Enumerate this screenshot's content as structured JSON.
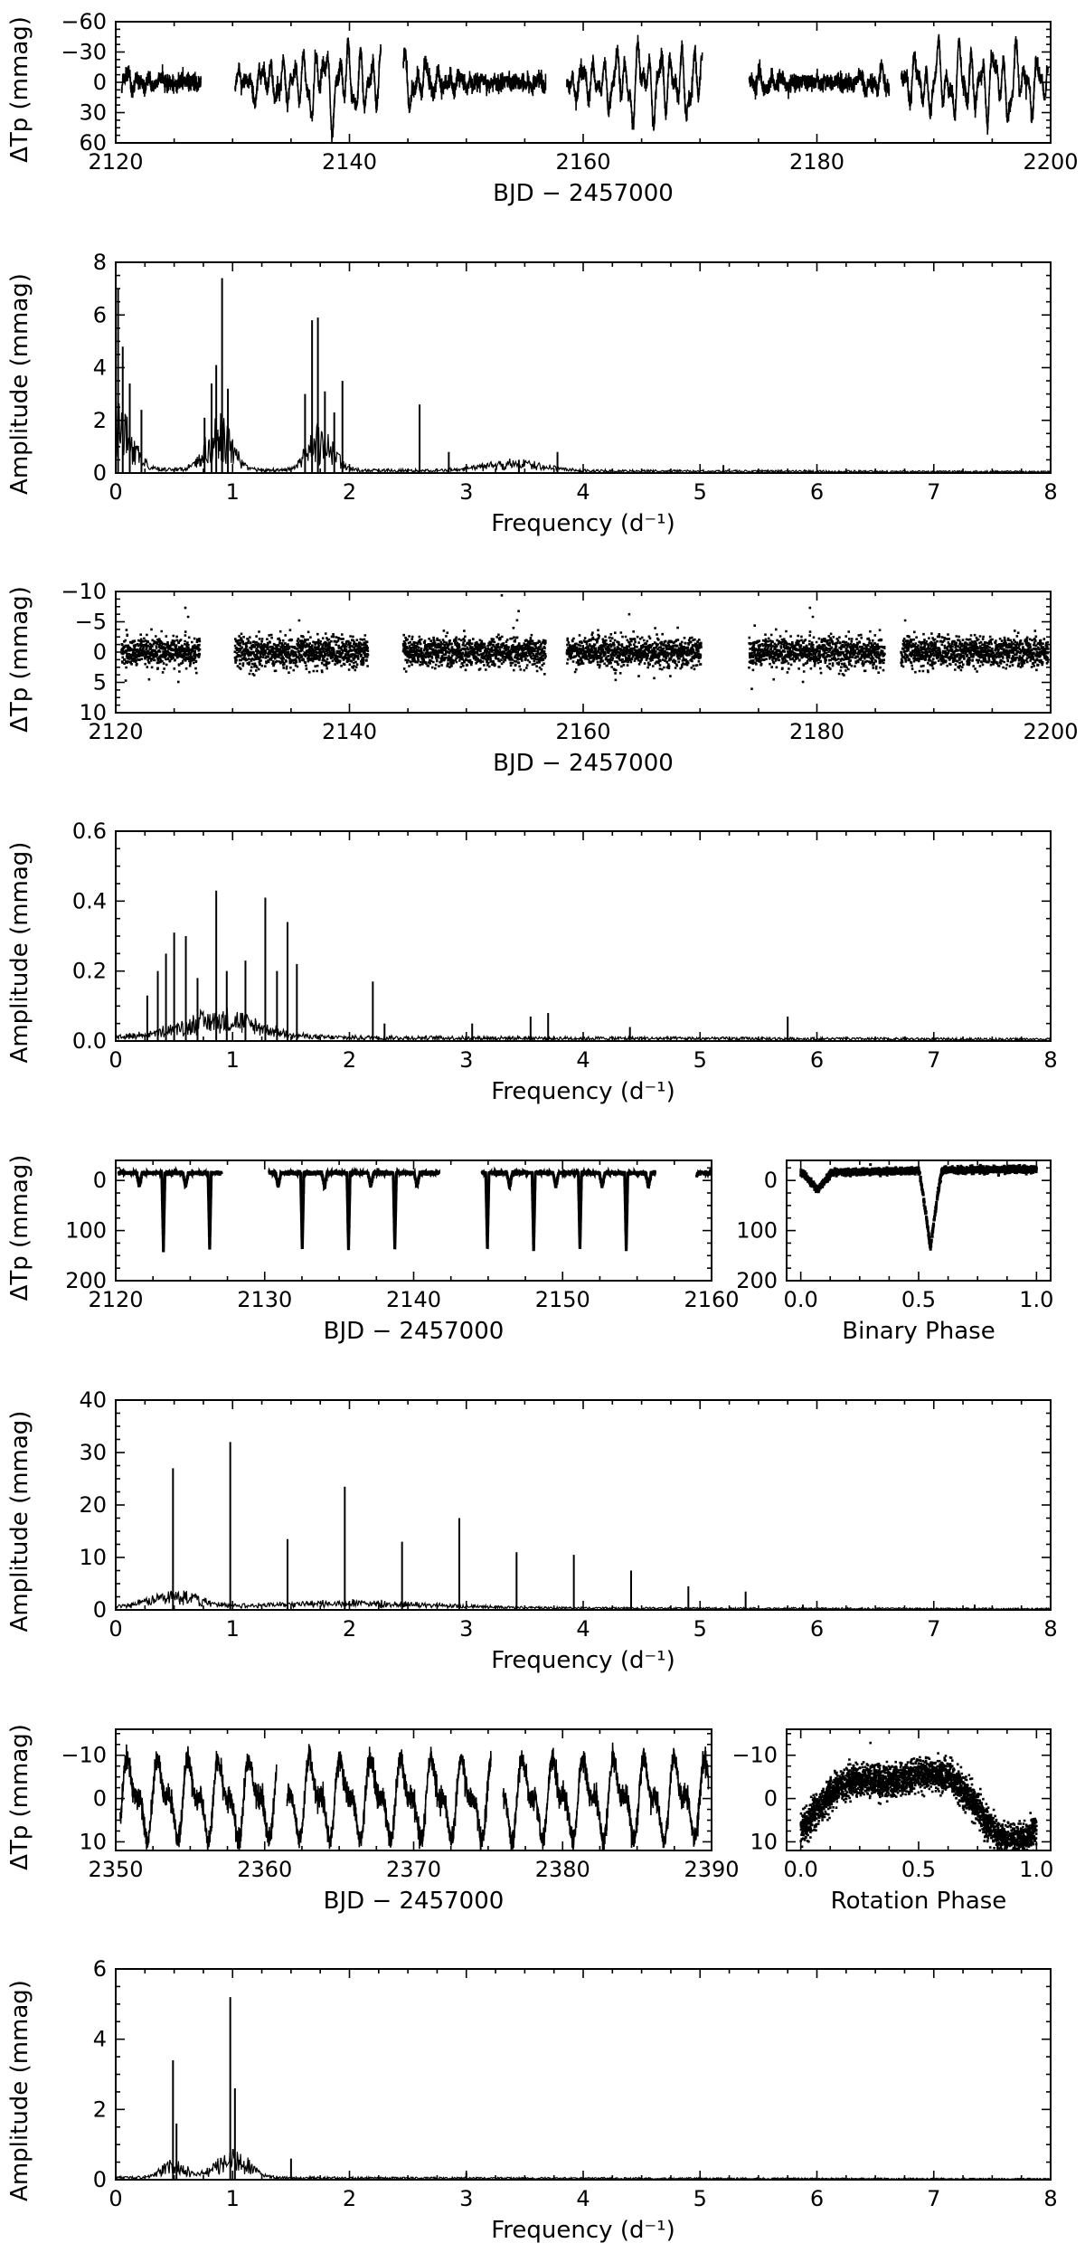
{
  "figure": {
    "panel_count": 10,
    "color_scheme": {
      "marks": "#000000",
      "background": "#ffffff"
    }
  },
  "chart_data": [
    {
      "id": "lc1",
      "type": "scatter",
      "xlabel": "BJD − 2457000",
      "ylabel": "ΔTp (mmag)",
      "xlim": [
        2120,
        2200
      ],
      "ylim": [
        60,
        -60
      ],
      "yinverted": true,
      "xticks": [
        2120,
        2140,
        2160,
        2180,
        2200
      ],
      "xtick_labels": [
        "2120",
        "2140",
        "2160",
        "2180",
        "2200"
      ],
      "yticks": [
        -60,
        -30,
        0,
        30,
        60
      ],
      "ytick_labels": [
        "−60",
        "−30",
        "0",
        "30",
        "60"
      ],
      "segments": [
        [
          2120.5,
          2127.3
        ],
        [
          2130.2,
          2142.7
        ],
        [
          2144.6,
          2156.8
        ],
        [
          2158.6,
          2170.2
        ],
        [
          2174.2,
          2186.2
        ],
        [
          2187.2,
          2199.8
        ]
      ],
      "series": [
        {
          "style": "dense-line",
          "components": [
            {
              "period": 0.95,
              "amplitude": 11
            },
            {
              "period": 0.55,
              "amplitude": 7
            },
            {
              "period": 2.3,
              "amplitude": 5
            },
            {
              "period": 1.7,
              "amplitude": 6
            }
          ],
          "envelope_peak_amplitude": 40,
          "noise": 4
        }
      ],
      "grid": false
    },
    {
      "id": "ft1",
      "type": "line",
      "xlabel": "Frequency (d⁻¹)",
      "ylabel": "Amplitude (mmag)",
      "xlim": [
        0,
        8
      ],
      "ylim": [
        0,
        8
      ],
      "xticks": [
        0,
        1,
        2,
        3,
        4,
        5,
        6,
        7,
        8
      ],
      "xtick_labels": [
        "0",
        "1",
        "2",
        "3",
        "4",
        "5",
        "6",
        "7",
        "8"
      ],
      "yticks": [
        0,
        2,
        4,
        6,
        8
      ],
      "ytick_labels": [
        "0",
        "2",
        "4",
        "6",
        "8"
      ],
      "peaks": [
        {
          "frequency": 0.02,
          "amplitude": 7.0
        },
        {
          "frequency": 0.06,
          "amplitude": 4.8
        },
        {
          "frequency": 0.12,
          "amplitude": 3.4
        },
        {
          "frequency": 0.22,
          "amplitude": 2.4
        },
        {
          "frequency": 0.76,
          "amplitude": 2.1
        },
        {
          "frequency": 0.82,
          "amplitude": 3.4
        },
        {
          "frequency": 0.86,
          "amplitude": 4.1
        },
        {
          "frequency": 0.91,
          "amplitude": 7.4
        },
        {
          "frequency": 0.96,
          "amplitude": 3.2
        },
        {
          "frequency": 1.62,
          "amplitude": 3.0
        },
        {
          "frequency": 1.68,
          "amplitude": 5.8
        },
        {
          "frequency": 1.73,
          "amplitude": 5.9
        },
        {
          "frequency": 1.79,
          "amplitude": 3.1
        },
        {
          "frequency": 1.87,
          "amplitude": 2.3
        },
        {
          "frequency": 1.94,
          "amplitude": 3.5
        },
        {
          "frequency": 2.6,
          "amplitude": 2.6
        },
        {
          "frequency": 2.85,
          "amplitude": 0.8
        },
        {
          "frequency": 3.45,
          "amplitude": 0.5
        },
        {
          "frequency": 3.78,
          "amplitude": 0.8
        },
        {
          "frequency": 5.2,
          "amplitude": 0.3
        }
      ],
      "humps": [
        {
          "center": 0.0,
          "width": 0.18,
          "height": 2.0
        },
        {
          "center": 0.88,
          "width": 0.16,
          "height": 1.6
        },
        {
          "center": 1.75,
          "width": 0.16,
          "height": 1.3
        },
        {
          "center": 3.4,
          "width": 0.4,
          "height": 0.3
        }
      ],
      "noise_floor": 0.12,
      "grid": false
    },
    {
      "id": "lc2",
      "type": "scatter",
      "xlabel": "BJD − 2457000",
      "ylabel": "ΔTp (mmag)",
      "xlim": [
        2120,
        2200
      ],
      "ylim": [
        10,
        -10
      ],
      "yinverted": true,
      "xticks": [
        2120,
        2140,
        2160,
        2180,
        2200
      ],
      "xtick_labels": [
        "2120",
        "2140",
        "2160",
        "2180",
        "2200"
      ],
      "yticks": [
        -10,
        -5,
        0,
        5,
        10
      ],
      "ytick_labels": [
        "−10",
        "−5",
        "0",
        "5",
        "10"
      ],
      "segments": [
        [
          2120.5,
          2127.2
        ],
        [
          2130.2,
          2141.6
        ],
        [
          2144.6,
          2156.8
        ],
        [
          2158.6,
          2170.1
        ],
        [
          2174.2,
          2185.8
        ],
        [
          2187.2,
          2199.8
        ]
      ],
      "series": [
        {
          "style": "points",
          "components": [],
          "noise": 1.2
        }
      ],
      "grid": false
    },
    {
      "id": "ft2",
      "type": "line",
      "xlabel": "Frequency (d⁻¹)",
      "ylabel": "Amplitude (mmag)",
      "xlim": [
        0,
        8
      ],
      "ylim": [
        0,
        0.6
      ],
      "xticks": [
        0,
        1,
        2,
        3,
        4,
        5,
        6,
        7,
        8
      ],
      "xtick_labels": [
        "0",
        "1",
        "2",
        "3",
        "4",
        "5",
        "6",
        "7",
        "8"
      ],
      "yticks": [
        0,
        0.2,
        0.4,
        0.6
      ],
      "ytick_labels": [
        "0.0",
        "0.2",
        "0.4",
        "0.6"
      ],
      "peaks": [
        {
          "frequency": 0.27,
          "amplitude": 0.13
        },
        {
          "frequency": 0.36,
          "amplitude": 0.2
        },
        {
          "frequency": 0.43,
          "amplitude": 0.25
        },
        {
          "frequency": 0.5,
          "amplitude": 0.31
        },
        {
          "frequency": 0.6,
          "amplitude": 0.3
        },
        {
          "frequency": 0.7,
          "amplitude": 0.18
        },
        {
          "frequency": 0.86,
          "amplitude": 0.43
        },
        {
          "frequency": 0.95,
          "amplitude": 0.2
        },
        {
          "frequency": 1.11,
          "amplitude": 0.23
        },
        {
          "frequency": 1.28,
          "amplitude": 0.41
        },
        {
          "frequency": 1.38,
          "amplitude": 0.2
        },
        {
          "frequency": 1.47,
          "amplitude": 0.34
        },
        {
          "frequency": 1.55,
          "amplitude": 0.22
        },
        {
          "frequency": 2.2,
          "amplitude": 0.17
        },
        {
          "frequency": 2.3,
          "amplitude": 0.05
        },
        {
          "frequency": 3.05,
          "amplitude": 0.05
        },
        {
          "frequency": 3.55,
          "amplitude": 0.07
        },
        {
          "frequency": 3.7,
          "amplitude": 0.08
        },
        {
          "frequency": 4.4,
          "amplitude": 0.04
        },
        {
          "frequency": 5.75,
          "amplitude": 0.07
        }
      ],
      "humps": [
        {
          "center": 0.9,
          "width": 0.45,
          "height": 0.06
        }
      ],
      "noise_floor": 0.012,
      "grid": false
    },
    {
      "id": "lc3",
      "type": "scatter",
      "xlabel": "BJD − 2457000",
      "ylabel": "ΔTp (mmag)",
      "xlim": [
        2120,
        2160
      ],
      "ylim": [
        200,
        -40
      ],
      "yinverted": true,
      "xticks": [
        2120,
        2130,
        2140,
        2150,
        2160
      ],
      "xtick_labels": [
        "2120",
        "2130",
        "2140",
        "2150",
        "2160"
      ],
      "yticks": [
        0,
        100,
        200
      ],
      "ytick_labels": [
        "0",
        "100",
        "200"
      ],
      "segments": [
        [
          2120.2,
          2127.1
        ],
        [
          2130.3,
          2141.7
        ],
        [
          2144.6,
          2156.2
        ],
        [
          2159.0,
          2160.0
        ]
      ],
      "series": [
        {
          "style": "eclipsing",
          "period": 3.107,
          "primary_depth": 155,
          "primary_epoch": 2123.2,
          "secondary_depth": 35,
          "baseline": -15,
          "noise": 2
        }
      ],
      "grid": false
    },
    {
      "id": "ph1",
      "type": "scatter",
      "xlabel": "Binary Phase",
      "ylabel": "",
      "xlim": [
        -0.06,
        1.06
      ],
      "ylim": [
        200,
        -40
      ],
      "yinverted": true,
      "xticks": [
        0,
        0.5,
        1.0
      ],
      "xtick_labels": [
        "0.0",
        "0.5",
        "1.0"
      ],
      "yticks": [
        0,
        100,
        200
      ],
      "ytick_labels": [
        "0",
        "100",
        "200"
      ],
      "series": [
        {
          "style": "phase-eclipse",
          "primary_phase": 0.55,
          "primary_depth": 155,
          "secondary_phase": 0.07,
          "secondary_depth": 35,
          "baseline": -15,
          "noise": 3
        }
      ],
      "grid": false
    },
    {
      "id": "ft3",
      "type": "line",
      "xlabel": "Frequency (d⁻¹)",
      "ylabel": "Amplitude (mmag)",
      "xlim": [
        0,
        8
      ],
      "ylim": [
        0,
        40
      ],
      "xticks": [
        0,
        1,
        2,
        3,
        4,
        5,
        6,
        7,
        8
      ],
      "xtick_labels": [
        "0",
        "1",
        "2",
        "3",
        "4",
        "5",
        "6",
        "7",
        "8"
      ],
      "yticks": [
        0,
        10,
        20,
        30,
        40
      ],
      "ytick_labels": [
        "0",
        "10",
        "20",
        "30",
        "40"
      ],
      "peaks": [
        {
          "frequency": 0.49,
          "amplitude": 27
        },
        {
          "frequency": 0.98,
          "amplitude": 32
        },
        {
          "frequency": 1.47,
          "amplitude": 13.5
        },
        {
          "frequency": 1.96,
          "amplitude": 23.5
        },
        {
          "frequency": 2.45,
          "amplitude": 13
        },
        {
          "frequency": 2.94,
          "amplitude": 17.5
        },
        {
          "frequency": 3.43,
          "amplitude": 11
        },
        {
          "frequency": 3.92,
          "amplitude": 10.5
        },
        {
          "frequency": 4.41,
          "amplitude": 7.5
        },
        {
          "frequency": 4.9,
          "amplitude": 4.5
        },
        {
          "frequency": 5.39,
          "amplitude": 3.5
        },
        {
          "frequency": 5.88,
          "amplitude": 1.0
        },
        {
          "frequency": 7.35,
          "amplitude": 1.0
        }
      ],
      "humps": [
        {
          "center": 0.5,
          "width": 0.3,
          "height": 2.5
        },
        {
          "center": 2.0,
          "width": 1.0,
          "height": 1.0
        }
      ],
      "noise_floor": 0.5,
      "grid": false
    },
    {
      "id": "lc4",
      "type": "scatter",
      "xlabel": "BJD − 2457000",
      "ylabel": "ΔTp (mmag)",
      "xlim": [
        2350,
        2390
      ],
      "ylim": [
        12,
        -16
      ],
      "yinverted": true,
      "xticks": [
        2350,
        2360,
        2370,
        2380,
        2390
      ],
      "xtick_labels": [
        "2350",
        "2360",
        "2370",
        "2380",
        "2390"
      ],
      "yticks": [
        -10,
        0,
        10
      ],
      "ytick_labels": [
        "−10",
        "0",
        "10"
      ],
      "segments": [
        [
          2350.3,
          2360.8
        ],
        [
          2361.5,
          2375.2
        ],
        [
          2376.0,
          2389.8
        ]
      ],
      "series": [
        {
          "style": "dense-line",
          "components": [
            {
              "period": 2.04,
              "amplitude": 7
            },
            {
              "period": 1.02,
              "amplitude": 4
            }
          ],
          "noise": 1.3
        }
      ],
      "grid": false
    },
    {
      "id": "ph2",
      "type": "scatter",
      "xlabel": "Rotation Phase",
      "ylabel": "",
      "xlim": [
        -0.06,
        1.06
      ],
      "ylim": [
        12,
        -16
      ],
      "yinverted": true,
      "xticks": [
        0,
        0.5,
        1.0
      ],
      "xtick_labels": [
        "0.0",
        "0.5",
        "1.0"
      ],
      "yticks": [
        -10,
        0,
        10
      ],
      "ytick_labels": [
        "−10",
        "0",
        "10"
      ],
      "series": [
        {
          "style": "phase-wave",
          "peak_phase": 0.42,
          "amplitude": 7,
          "harmonic_amplitude": 3,
          "noise": 1.8
        }
      ],
      "grid": false
    },
    {
      "id": "ft4",
      "type": "line",
      "xlabel": "Frequency (d⁻¹)",
      "ylabel": "Amplitude (mmag)",
      "xlim": [
        0,
        8
      ],
      "ylim": [
        0,
        6
      ],
      "xticks": [
        0,
        1,
        2,
        3,
        4,
        5,
        6,
        7,
        8
      ],
      "xtick_labels": [
        "0",
        "1",
        "2",
        "3",
        "4",
        "5",
        "6",
        "7",
        "8"
      ],
      "yticks": [
        0,
        2,
        4,
        6
      ],
      "ytick_labels": [
        "0",
        "2",
        "4",
        "6"
      ],
      "peaks": [
        {
          "frequency": 0.49,
          "amplitude": 3.4
        },
        {
          "frequency": 0.52,
          "amplitude": 1.6
        },
        {
          "frequency": 0.98,
          "amplitude": 5.2
        },
        {
          "frequency": 1.02,
          "amplitude": 2.6
        },
        {
          "frequency": 1.5,
          "amplitude": 0.6
        },
        {
          "frequency": 3.0,
          "amplitude": 0.2
        }
      ],
      "humps": [
        {
          "center": 0.5,
          "width": 0.15,
          "height": 0.4
        },
        {
          "center": 1.0,
          "width": 0.2,
          "height": 0.6
        }
      ],
      "noise_floor": 0.06,
      "grid": false
    }
  ]
}
